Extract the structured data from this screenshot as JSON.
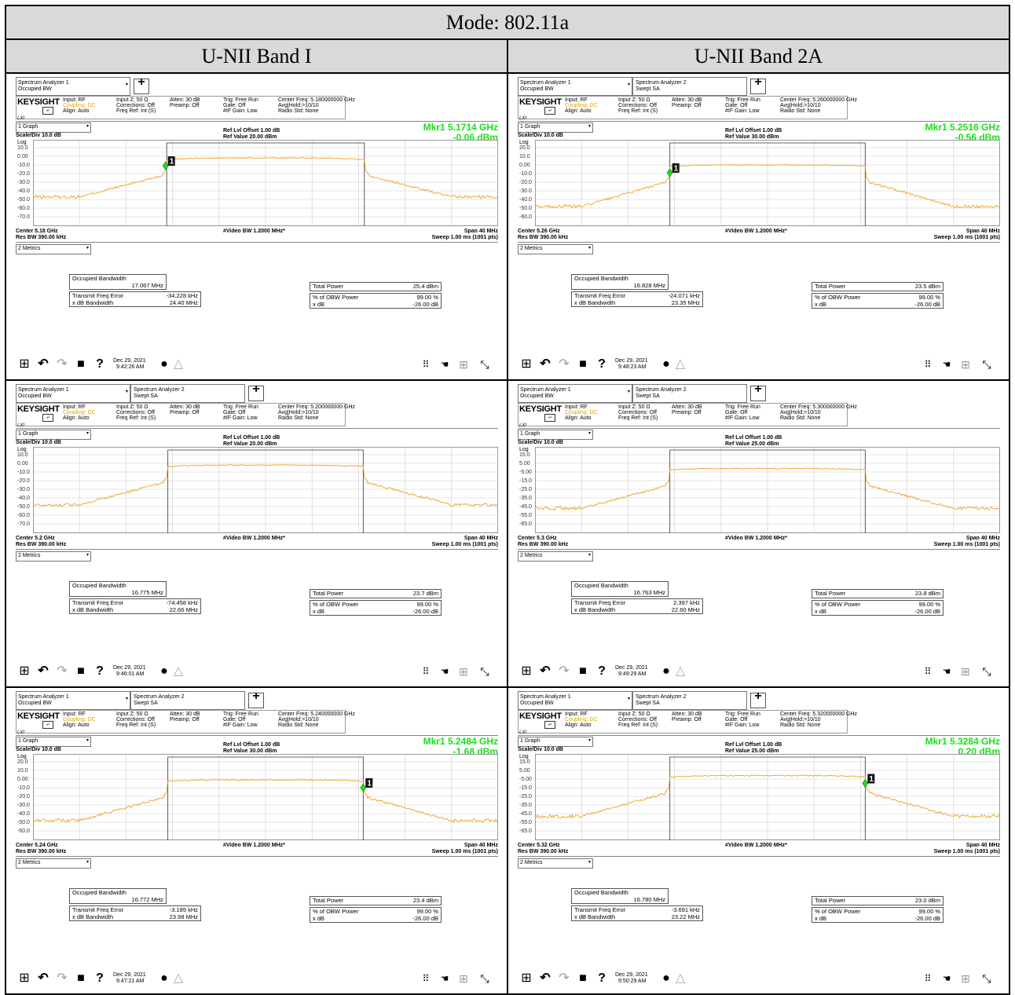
{
  "header": {
    "mode": "Mode: 802.11a",
    "col1": "U-NII Band I",
    "col2": "U-NII Band 2A"
  },
  "common": {
    "tab1": "Spectrum Analyzer 1",
    "tab1_sub": "Occupied BW",
    "tab2": "Spectrum Analyzer 2",
    "tab2_sub": "Swept SA",
    "plus": "+",
    "logo": "KEYSIGHT",
    "lxi": "LXI",
    "input": "Input: RF",
    "coupling": "Coupling: DC",
    "align": "Align: Auto",
    "inputz": "Input Z: 50 Ω",
    "corrections": "Corrections: Off",
    "freqref": "Freq Ref: Int (S)",
    "atten": "Atten: 30 dB",
    "preamp": "Preamp: Off",
    "trig": "Trig: Free Run",
    "gate": "Gate: Off",
    "ifgain": "#IF Gain: Low",
    "avg": "Avg|Hold:>10/10",
    "radio": "Radio Std: None",
    "graph": "1 Graph",
    "scale": "Scale/Div 10.0 dB",
    "log": "Log",
    "reflvl": "Ref Lvl Offset 1.00 dB",
    "vbw": "#Video BW 1.2000 MHz*",
    "span": "Span 40 MHz",
    "rbw": "Res BW 390.00 kHz",
    "sweep": "Sweep 1.00 ms (1001 pts)",
    "metrics": "2 Metrics",
    "obw_label": "Occupied Bandwidth",
    "tfe_label": "Transmit Freq Error",
    "xdb_label": "x dB Bandwidth",
    "tp_label": "Total Power",
    "pct_label": "% of OBW Power",
    "xdb2_label": "x dB",
    "pct_value": "99.00 %",
    "xdb2_value": "-26.00 dB",
    "marker_num": "1"
  },
  "panels": [
    {
      "two_tabs": false,
      "center_freq": "Center Freq: 5.180000000 GHz",
      "ref_value": "Ref Value 20.00 dBm",
      "yticks": [
        "10.0",
        "0.00",
        "-10.0",
        "-20.0",
        "-30.0",
        "-40.0",
        "-50.0",
        "-60.0",
        "-70.0"
      ],
      "ref_dbm": 20,
      "marker": true,
      "mkr_freq": "Mkr1  5.1714 GHz",
      "mkr_val": "-0.06 dBm",
      "mkr_offset_mhz": -8.6,
      "center": "Center 5.18 GHz",
      "obw": "17.067 MHz",
      "tfe": "-34.228 kHz",
      "xdb": "24.40 MHz",
      "total_power": "25.4 dBm",
      "date": "Dec 29, 2021",
      "time": "9:42:26 AM",
      "trace": {
        "plateau": 8,
        "skirt": -5,
        "noise": -37,
        "edge_left": 8.5,
        "edge_right": 8.5
      }
    },
    {
      "two_tabs": true,
      "center_freq": "Center Freq: 5.260000000 GHz",
      "ref_value": "Ref Value 30.00 dBm",
      "yticks": [
        "20.0",
        "10.0",
        "0.00",
        "-10.0",
        "-20.0",
        "-30.0",
        "-40.0",
        "-50.0",
        "-60.0"
      ],
      "ref_dbm": 30,
      "marker": true,
      "mkr_freq": "Mkr1  5.2516 GHz",
      "mkr_val": "-0.56 dBm",
      "mkr_offset_mhz": -8.4,
      "center": "Center 5.26 GHz",
      "obw": "16.828 MHz",
      "tfe": "-24.071 kHz",
      "xdb": "23.35 MHz",
      "total_power": "23.5 dBm",
      "date": "Dec 29, 2021",
      "time": "9:48:23 AM",
      "trace": {
        "plateau": 10,
        "skirt": -3,
        "noise": -38,
        "edge_left": 8.4,
        "edge_right": 8.4
      }
    },
    {
      "two_tabs": true,
      "center_freq": "Center Freq: 5.200000000 GHz",
      "ref_value": "Ref Value 20.00 dBm",
      "yticks": [
        "10.0",
        "0.00",
        "-10.0",
        "-20.0",
        "-30.0",
        "-40.0",
        "-50.0",
        "-60.0",
        "-70.0"
      ],
      "ref_dbm": 20,
      "marker": false,
      "mkr_freq": "",
      "mkr_val": "",
      "mkr_offset_mhz": 0,
      "center": "Center 5.2 GHz",
      "obw": "16.775 MHz",
      "tfe": "-74.458 kHz",
      "xdb": "22.66 MHz",
      "total_power": "23.7 dBm",
      "date": "Dec 29, 2021",
      "time": "9:46:01 AM",
      "trace": {
        "plateau": 8,
        "skirt": -5,
        "noise": -38,
        "edge_left": 8.4,
        "edge_right": 8.4
      }
    },
    {
      "two_tabs": true,
      "center_freq": "Center Freq: 5.300000000 GHz",
      "ref_value": "Ref Value 25.00 dBm",
      "yticks": [
        "15.0",
        "5.00",
        "-5.00",
        "-15.0",
        "-25.0",
        "-35.0",
        "-45.0",
        "-55.0",
        "-65.0"
      ],
      "ref_dbm": 25,
      "marker": false,
      "mkr_freq": "",
      "mkr_val": "",
      "mkr_offset_mhz": 0,
      "center": "Center 5.3 GHz",
      "obw": "16.763 MHz",
      "tfe": "2.397 kHz",
      "xdb": "22.60 MHz",
      "total_power": "23.8 dBm",
      "date": "Dec 29, 2021",
      "time": "9:49:29 AM",
      "trace": {
        "plateau": 9,
        "skirt": -4,
        "noise": -37,
        "edge_left": 8.4,
        "edge_right": 8.4
      }
    },
    {
      "two_tabs": true,
      "center_freq": "Center Freq: 5.240000000 GHz",
      "ref_value": "Ref Value 30.00 dBm",
      "yticks": [
        "20.0",
        "10.0",
        "0.00",
        "-10.0",
        "-20.0",
        "-30.0",
        "-40.0",
        "-50.0",
        "-60.0"
      ],
      "ref_dbm": 30,
      "marker": true,
      "mkr_freq": "Mkr1  5.2484 GHz",
      "mkr_val": "-1.68 dBm",
      "mkr_offset_mhz": 8.4,
      "center": "Center 5.24 GHz",
      "obw": "16.772 MHz",
      "tfe": "-3.185 kHz",
      "xdb": "23.98 MHz",
      "total_power": "23.4 dBm",
      "date": "Dec 29, 2021",
      "time": "9:47:21 AM",
      "trace": {
        "plateau": 9,
        "skirt": -4,
        "noise": -38,
        "edge_left": 8.4,
        "edge_right": 8.4
      }
    },
    {
      "two_tabs": true,
      "center_freq": "Center Freq: 5.320000000 GHz",
      "ref_value": "Ref Value 25.00 dBm",
      "yticks": [
        "15.0",
        "5.00",
        "-5.00",
        "-15.0",
        "-25.0",
        "-35.0",
        "-45.0",
        "-55.0",
        "-65.0"
      ],
      "ref_dbm": 25,
      "marker": true,
      "mkr_freq": "Mkr1  5.3284 GHz",
      "mkr_val": "0.20 dBm",
      "mkr_offset_mhz": 8.4,
      "center": "Center 5.32 GHz",
      "obw": "16.780 MHz",
      "tfe": "-3.691 kHz",
      "xdb": "23.22 MHz",
      "total_power": "23.0 dBm",
      "date": "Dec 29, 2021",
      "time": "9:50:29 AM",
      "trace": {
        "plateau": 9,
        "skirt": -4,
        "noise": -38,
        "edge_left": 8.4,
        "edge_right": 8.4
      }
    }
  ]
}
